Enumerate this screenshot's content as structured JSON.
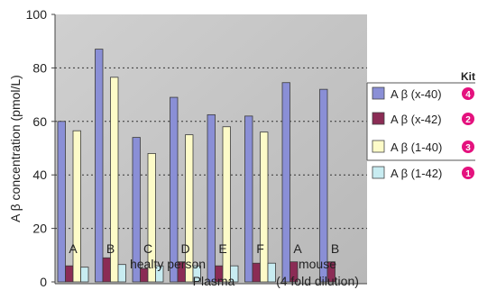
{
  "chart_data": {
    "type": "bar",
    "ylabel": "A β concentration (pmol/L)",
    "ylim": [
      0,
      100
    ],
    "yticks": [
      "0",
      "20",
      "40",
      "60",
      "80",
      "100"
    ],
    "categories": [
      "A",
      "B",
      "C",
      "D",
      "E",
      "F",
      "A",
      "B"
    ],
    "group_labels": {
      "healthy": "healty person",
      "mouse": "mouse",
      "plasma": "Plasma",
      "dilution": "(4 fold dilution)"
    },
    "legend_title": "Kit",
    "series": [
      {
        "name": "A β (x-40)",
        "badge": "4",
        "color": "#8a8fd6",
        "values": [
          60,
          87,
          54,
          69,
          62.5,
          62,
          74.5,
          72
        ]
      },
      {
        "name": "A β (x-42)",
        "badge": "2",
        "color": "#8b2c55",
        "values": [
          6,
          9,
          5,
          7.5,
          6,
          7,
          7.5,
          7.5
        ]
      },
      {
        "name": "A β (1-40)",
        "badge": "3",
        "color": "#fdfbc8",
        "values": [
          56.5,
          76.5,
          48,
          55,
          58,
          56,
          null,
          null
        ]
      },
      {
        "name": "A β (1-42)",
        "badge": "1",
        "color": "#c8ecf1",
        "values": [
          5.5,
          6.5,
          6,
          6,
          6,
          7,
          null,
          null
        ]
      }
    ],
    "grid": true,
    "legend_position": "right"
  },
  "colors": {
    "plot_background": "#c4c4c4",
    "badge": "#e4127e"
  }
}
